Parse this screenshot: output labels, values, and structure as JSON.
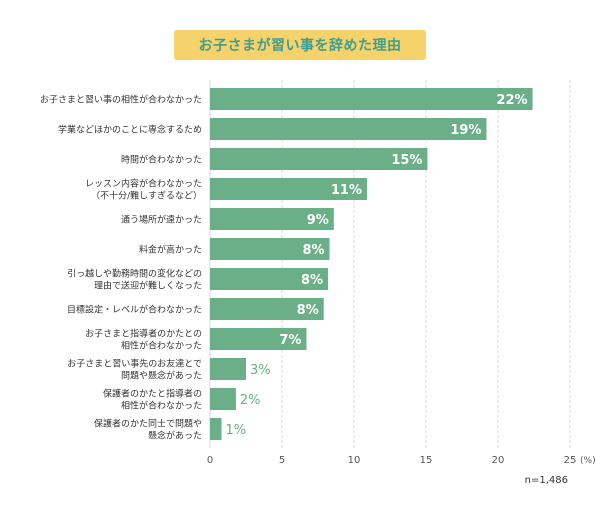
{
  "chart_data": {
    "type": "bar",
    "orientation": "horizontal",
    "title": "お子さまが習い事を辞めた理由",
    "unit": "(%)",
    "sample_size": "n=1,486",
    "xlim": [
      0,
      25
    ],
    "ticks": [
      0,
      5,
      10,
      15,
      20,
      25
    ],
    "grid": true,
    "bar_color": "#6aaf87",
    "label_color_inside": "#ffffff",
    "label_color_outside": "#6aaf87",
    "categories": [
      [
        "お子さまと習い事の相性が合わなかった"
      ],
      [
        "学業などほかのことに専念するため"
      ],
      [
        "時間が合わなかった"
      ],
      [
        "レッスン内容が合わなかった",
        "（不十分/難しすぎるなど）"
      ],
      [
        "通う場所が遠かった"
      ],
      [
        "料金が高かった"
      ],
      [
        "引っ越しや勤務時間の変化などの",
        "理由で送迎が難しくなった"
      ],
      [
        "目標設定・レベルが合わなかった"
      ],
      [
        "お子さまと指導者のかたとの",
        "相性が合わなかった"
      ],
      [
        "お子さまと習い事先のお友達とで",
        "問題や懸念があった"
      ],
      [
        "保護者のかたと指導者の",
        "相性が合わなかった"
      ],
      [
        "保護者のかた同士で問題や",
        "懸念があった"
      ]
    ],
    "values": [
      22.4,
      19.2,
      15.1,
      10.9,
      8.6,
      8.3,
      8.2,
      7.9,
      6.7,
      2.5,
      1.8,
      0.8
    ],
    "value_labels": [
      "22%",
      "19%",
      "15%",
      "11%",
      "9%",
      "8%",
      "8%",
      "8%",
      "7%",
      "3%",
      "2%",
      "1%"
    ]
  }
}
